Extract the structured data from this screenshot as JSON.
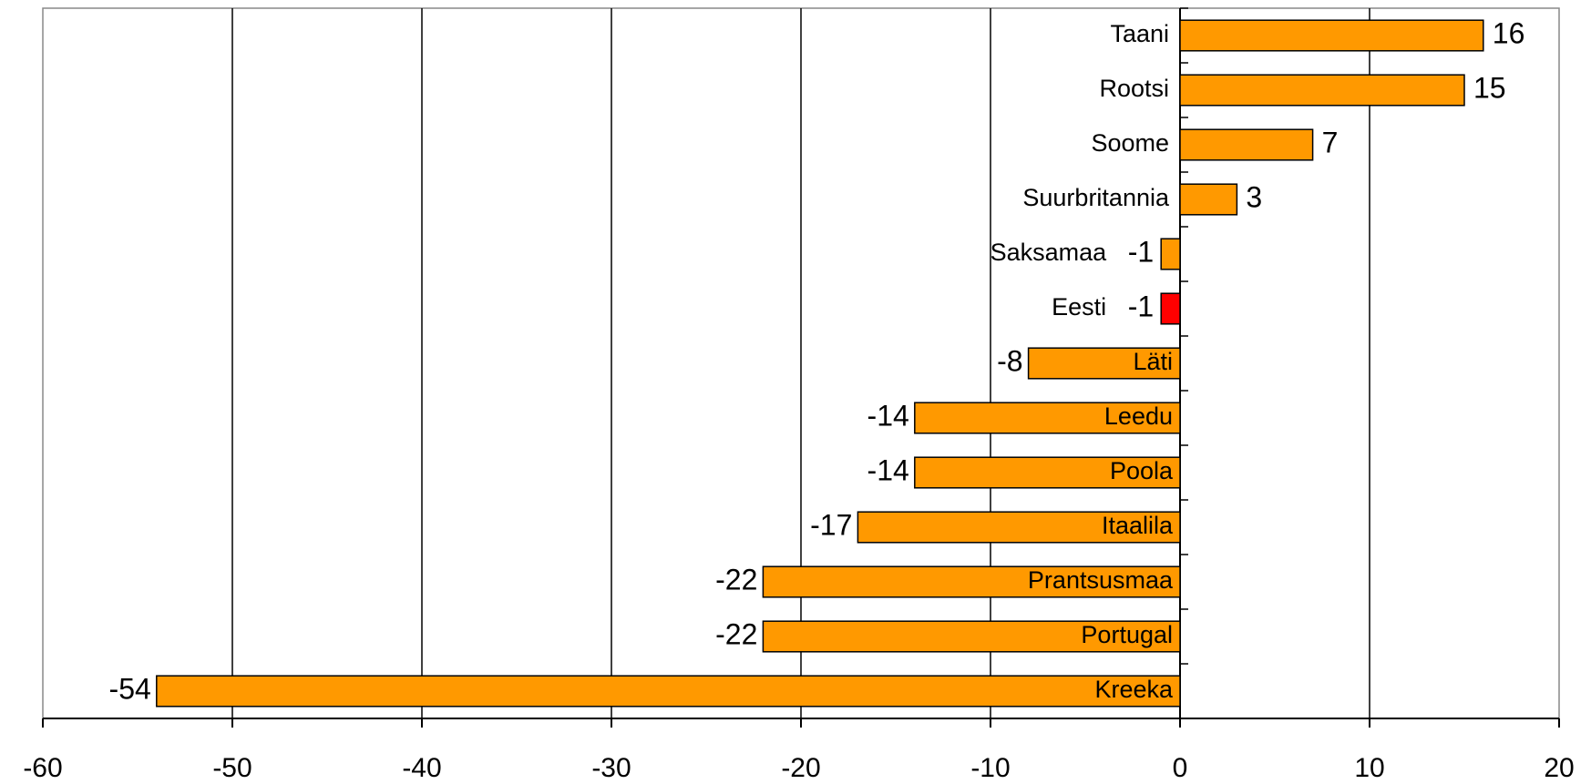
{
  "chart_data": {
    "type": "bar",
    "orientation": "horizontal",
    "categories": [
      "Taani",
      "Rootsi",
      "Soome",
      "Suurbritannia",
      "Saksamaa",
      "Eesti",
      "Läti",
      "Leedu",
      "Poola",
      "Itaalila",
      "Prantsusmaa",
      "Portugal",
      "Kreeka"
    ],
    "values": [
      16,
      15,
      7,
      3,
      -1,
      -1,
      -8,
      -14,
      -14,
      -17,
      -22,
      -22,
      -54
    ],
    "colors": [
      "#ff9900",
      "#ff9900",
      "#ff9900",
      "#ff9900",
      "#ff9900",
      "#ff0000",
      "#ff9900",
      "#ff9900",
      "#ff9900",
      "#ff9900",
      "#ff9900",
      "#ff9900",
      "#ff9900"
    ],
    "xlim": [
      -60,
      20
    ],
    "xticks": [
      -60,
      -50,
      -40,
      -30,
      -20,
      -10,
      0,
      10,
      20
    ],
    "grid": true
  }
}
